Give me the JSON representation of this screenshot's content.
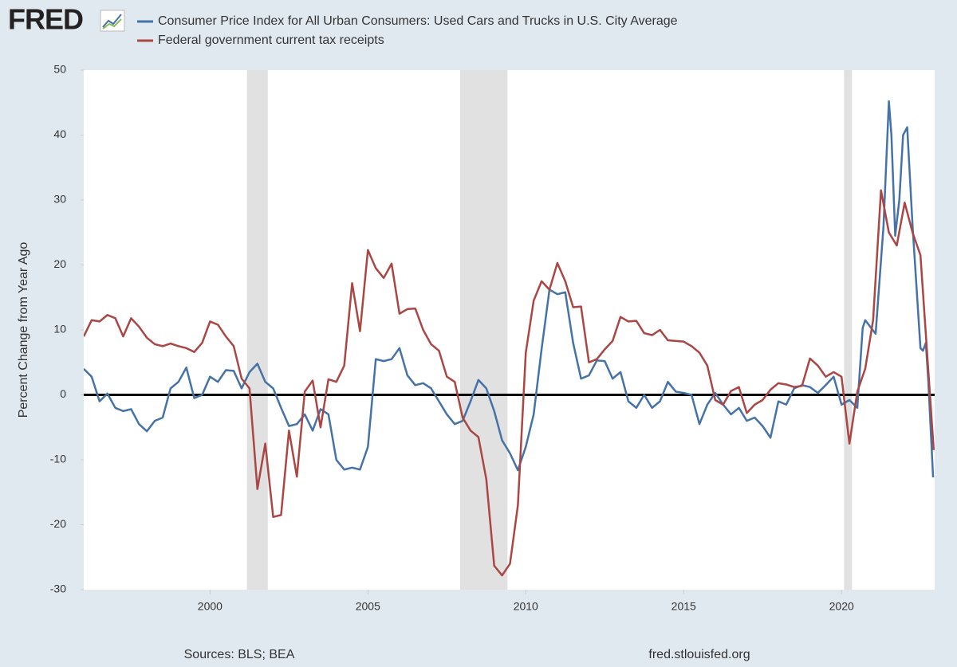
{
  "chart_data": {
    "type": "line",
    "logo": "FRED",
    "y_label": "Percent Change from Year Ago",
    "source": "Sources: BLS; BEA",
    "site": "fred.stlouisfed.org",
    "xlim": [
      1996,
      2022.95
    ],
    "ylim": [
      -30,
      50
    ],
    "xticks": [
      2000,
      2005,
      2010,
      2015,
      2020
    ],
    "yticks": [
      -30,
      -20,
      -10,
      0,
      10,
      20,
      30,
      40,
      50
    ],
    "shaded_regions": [
      [
        2001.17,
        2001.83
      ],
      [
        2007.92,
        2009.42
      ],
      [
        2020.08,
        2020.33
      ]
    ],
    "series": [
      {
        "name": "Consumer Price Index for All Urban Consumers: Used Cars and Trucks in U.S. City Average",
        "color": "#4572a7",
        "x": [
          1996.0,
          1996.25,
          1996.5,
          1996.75,
          1997.0,
          1997.25,
          1997.5,
          1997.75,
          1998.0,
          1998.25,
          1998.5,
          1998.75,
          1999.0,
          1999.25,
          1999.5,
          1999.75,
          2000.0,
          2000.25,
          2000.5,
          2000.75,
          2001.0,
          2001.25,
          2001.5,
          2001.75,
          2002.0,
          2002.25,
          2002.5,
          2002.75,
          2003.0,
          2003.25,
          2003.5,
          2003.75,
          2004.0,
          2004.25,
          2004.5,
          2004.75,
          2005.0,
          2005.25,
          2005.5,
          2005.75,
          2006.0,
          2006.25,
          2006.5,
          2006.75,
          2007.0,
          2007.25,
          2007.5,
          2007.75,
          2008.0,
          2008.25,
          2008.5,
          2008.75,
          2009.0,
          2009.25,
          2009.5,
          2009.75,
          2010.0,
          2010.25,
          2010.5,
          2010.75,
          2011.0,
          2011.25,
          2011.5,
          2011.75,
          2012.0,
          2012.25,
          2012.5,
          2012.75,
          2013.0,
          2013.25,
          2013.5,
          2013.75,
          2014.0,
          2014.25,
          2014.5,
          2014.75,
          2015.0,
          2015.25,
          2015.5,
          2015.75,
          2016.0,
          2016.25,
          2016.5,
          2016.75,
          2017.0,
          2017.25,
          2017.5,
          2017.75,
          2018.0,
          2018.25,
          2018.5,
          2018.75,
          2019.0,
          2019.25,
          2019.5,
          2019.75,
          2020.0,
          2020.25,
          2020.5,
          2020.67,
          2020.75,
          2021.08,
          2021.33,
          2021.5,
          2021.58,
          2021.7,
          2021.83,
          2021.95,
          2022.08,
          2022.25,
          2022.5,
          2022.58,
          2022.67,
          2022.75,
          2022.9
        ],
        "values": [
          4,
          2.8,
          -1,
          0.2,
          -2,
          -2.5,
          -2.2,
          -4.5,
          -5.6,
          -4,
          -3.5,
          1,
          2,
          4.2,
          -0.5,
          0,
          2.8,
          2,
          3.8,
          3.7,
          1,
          3.5,
          4.8,
          2,
          1,
          -2,
          -4.8,
          -4.5,
          -3,
          -5.5,
          -2.2,
          -3,
          -10,
          -11.5,
          -11.2,
          -11.5,
          -8,
          5.5,
          5.2,
          5.5,
          7.2,
          3,
          1.5,
          1.8,
          1,
          -1,
          -3,
          -4.5,
          -4,
          -1,
          2.3,
          1,
          -2.5,
          -7,
          -9,
          -11.6,
          -8,
          -3,
          7,
          16.2,
          15.5,
          15.8,
          8,
          2.5,
          3,
          5.3,
          5.2,
          2.5,
          3.5,
          -1,
          -2,
          0,
          -2,
          -1,
          2,
          0.5,
          0.3,
          0,
          -4.5,
          -1.5,
          0.3,
          -1.5,
          -3,
          -2,
          -4,
          -3.5,
          -4.8,
          -6.6,
          -1,
          -1.5,
          1,
          1.5,
          1.2,
          0.3,
          1.5,
          2.8,
          -1.5,
          -0.8,
          -2,
          10.3,
          11.5,
          9.4,
          26,
          45.2,
          40,
          24.5,
          30,
          40,
          41.2,
          26,
          7.2,
          6.8,
          8,
          2,
          -12.7
        ]
      },
      {
        "name": "Federal government current tax receipts",
        "color": "#aa4643",
        "x": [
          1996.0,
          1996.25,
          1996.5,
          1996.75,
          1997.0,
          1997.25,
          1997.5,
          1997.75,
          1998.0,
          1998.25,
          1998.5,
          1998.75,
          1999.0,
          1999.25,
          1999.5,
          1999.75,
          2000.0,
          2000.25,
          2000.5,
          2000.75,
          2001.0,
          2001.25,
          2001.5,
          2001.75,
          2002.0,
          2002.25,
          2002.5,
          2002.75,
          2003.0,
          2003.25,
          2003.5,
          2003.75,
          2004.0,
          2004.25,
          2004.5,
          2004.75,
          2005.0,
          2005.25,
          2005.5,
          2005.75,
          2006.0,
          2006.25,
          2006.5,
          2006.75,
          2007.0,
          2007.25,
          2007.5,
          2007.75,
          2008.0,
          2008.25,
          2008.5,
          2008.75,
          2009.0,
          2009.25,
          2009.5,
          2009.75,
          2010.0,
          2010.25,
          2010.5,
          2010.75,
          2011.0,
          2011.25,
          2011.5,
          2011.75,
          2012.0,
          2012.25,
          2012.5,
          2012.75,
          2013.0,
          2013.25,
          2013.5,
          2013.75,
          2014.0,
          2014.25,
          2014.5,
          2014.75,
          2015.0,
          2015.25,
          2015.5,
          2015.75,
          2016.0,
          2016.25,
          2016.5,
          2016.75,
          2017.0,
          2017.25,
          2017.5,
          2017.75,
          2018.0,
          2018.25,
          2018.5,
          2018.75,
          2019.0,
          2019.25,
          2019.5,
          2019.75,
          2020.0,
          2020.25,
          2020.5,
          2020.75,
          2021.0,
          2021.25,
          2021.5,
          2021.75,
          2022.0,
          2022.25,
          2022.5,
          2022.92
        ],
        "values": [
          9,
          11.5,
          11.3,
          12.3,
          11.8,
          9,
          11.8,
          10.5,
          8.8,
          7.8,
          7.5,
          7.9,
          7.5,
          7.2,
          6.6,
          8,
          11.3,
          10.8,
          9,
          7.5,
          2.5,
          1,
          -14.5,
          -7.5,
          -18.8,
          -18.5,
          -5.5,
          -12.6,
          0.5,
          2.2,
          -5,
          2.4,
          2,
          4.5,
          17.2,
          9.8,
          22.3,
          19.5,
          18,
          20.2,
          12.5,
          13.2,
          13.3,
          10,
          7.8,
          6.8,
          2.8,
          2,
          -3.5,
          -5.5,
          -6.5,
          -13,
          -26.3,
          -27.8,
          -26,
          -17,
          6.5,
          14.5,
          17.5,
          16.2,
          20.3,
          17.5,
          13.5,
          13.6,
          5,
          5.5,
          7,
          8.3,
          12,
          11.3,
          11.4,
          9.5,
          9.2,
          10,
          8.4,
          8.3,
          8.2,
          7.5,
          6.5,
          4.5,
          -0.8,
          -1.5,
          0.6,
          1.2,
          -2.8,
          -1.5,
          -0.8,
          0.8,
          1.8,
          1.6,
          1.2,
          1.4,
          5.6,
          4.5,
          2.8,
          3.5,
          2.8,
          -7.5,
          0.5,
          4,
          11.5,
          31.5,
          25,
          23,
          29.6,
          25,
          21.5,
          -8.5
        ]
      }
    ]
  }
}
